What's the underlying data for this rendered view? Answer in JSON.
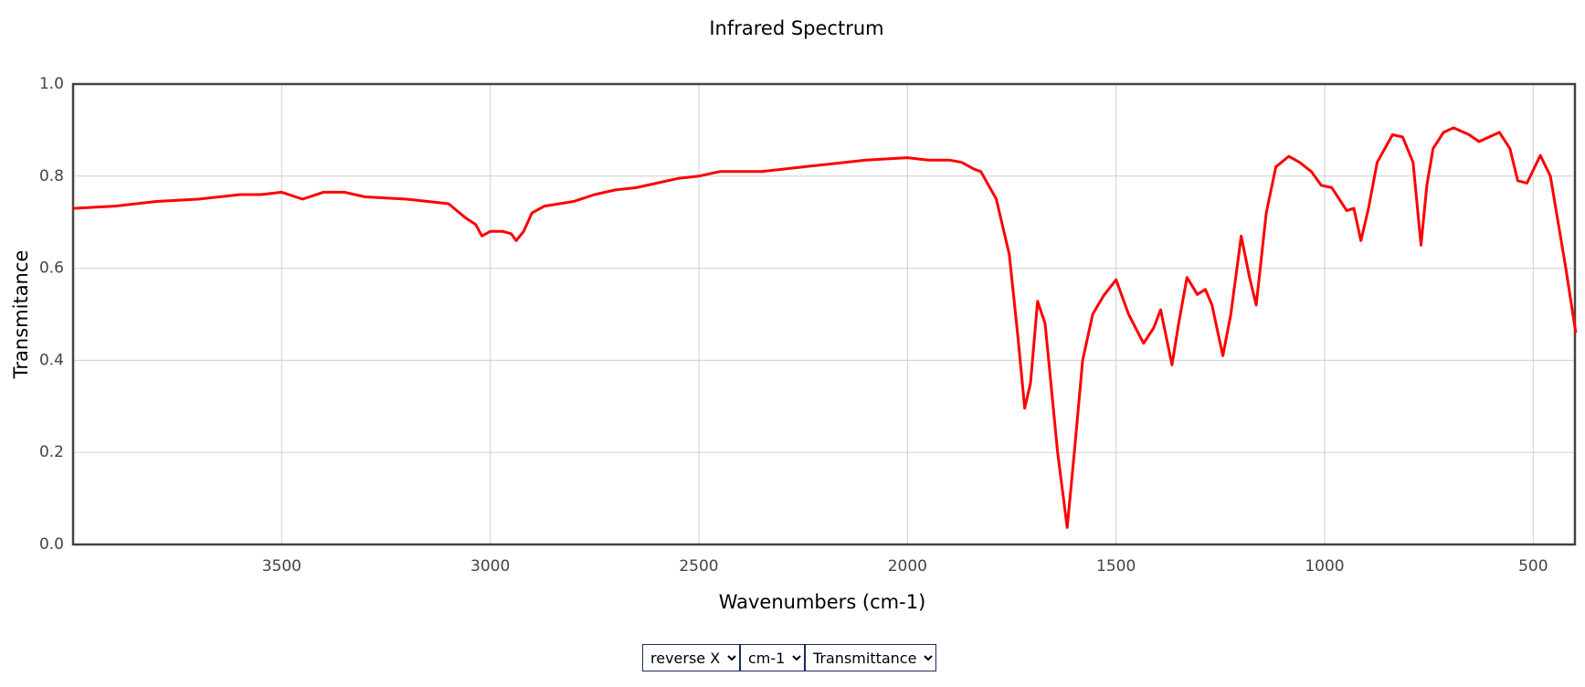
{
  "chart_data": {
    "type": "line",
    "title": "Infrared Spectrum",
    "x_label": "Wavenumbers (cm-1)",
    "y_label": "Transmitance",
    "xlim": [
      4000,
      400
    ],
    "ylim": [
      0,
      1
    ],
    "xticks": [
      3500,
      3000,
      2500,
      2000,
      1500,
      1000,
      500
    ],
    "yticks": [
      {
        "value": 0,
        "label": "0.0"
      },
      0.2,
      0.4,
      0.6,
      0.8,
      {
        "value": 1,
        "label": "1.0"
      }
    ],
    "grid": true,
    "series": [
      {
        "color": "#ff0000",
        "x": [
          4000,
          3900,
          3800,
          3700,
          3600,
          3550,
          3500,
          3450,
          3400,
          3350,
          3300,
          3200,
          3150,
          3100,
          3060,
          3035,
          3020,
          3000,
          2970,
          2950,
          2938,
          2920,
          2900,
          2870,
          2800,
          2750,
          2700,
          2650,
          2600,
          2550,
          2500,
          2450,
          2400,
          2350,
          2300,
          2200,
          2100,
          2000,
          1950,
          1900,
          1870,
          1840,
          1824,
          1787,
          1756,
          1735,
          1719,
          1705,
          1688,
          1670,
          1640,
          1617,
          1600,
          1580,
          1556,
          1530,
          1500,
          1470,
          1434,
          1410,
          1393,
          1366,
          1350,
          1330,
          1305,
          1286,
          1270,
          1244,
          1225,
          1200,
          1180,
          1164,
          1140,
          1117,
          1086,
          1060,
          1032,
          1008,
          983,
          947,
          930,
          913,
          895,
          874,
          837,
          813,
          788,
          769,
          755,
          740,
          715,
          691,
          654,
          630,
          581,
          556,
          537,
          515,
          483,
          459,
          422,
          398
        ],
        "values": [
          0.73,
          0.735,
          0.745,
          0.75,
          0.76,
          0.76,
          0.765,
          0.75,
          0.765,
          0.765,
          0.755,
          0.75,
          0.745,
          0.74,
          0.71,
          0.695,
          0.67,
          0.68,
          0.68,
          0.675,
          0.66,
          0.68,
          0.72,
          0.735,
          0.745,
          0.76,
          0.77,
          0.775,
          0.785,
          0.795,
          0.8,
          0.81,
          0.81,
          0.81,
          0.815,
          0.825,
          0.835,
          0.84,
          0.835,
          0.835,
          0.83,
          0.815,
          0.81,
          0.75,
          0.63,
          0.45,
          0.296,
          0.35,
          0.528,
          0.48,
          0.2,
          0.037,
          0.2,
          0.4,
          0.5,
          0.54,
          0.575,
          0.5,
          0.437,
          0.47,
          0.51,
          0.39,
          0.48,
          0.58,
          0.543,
          0.554,
          0.52,
          0.41,
          0.5,
          0.67,
          0.58,
          0.52,
          0.72,
          0.82,
          0.843,
          0.83,
          0.81,
          0.78,
          0.775,
          0.725,
          0.73,
          0.66,
          0.73,
          0.83,
          0.89,
          0.885,
          0.83,
          0.65,
          0.78,
          0.86,
          0.895,
          0.905,
          0.89,
          0.875,
          0.895,
          0.86,
          0.79,
          0.785,
          0.845,
          0.8,
          0.6,
          0.46
        ]
      }
    ]
  },
  "controls": [
    "reverse X",
    "cm-1",
    "Transmittance"
  ]
}
